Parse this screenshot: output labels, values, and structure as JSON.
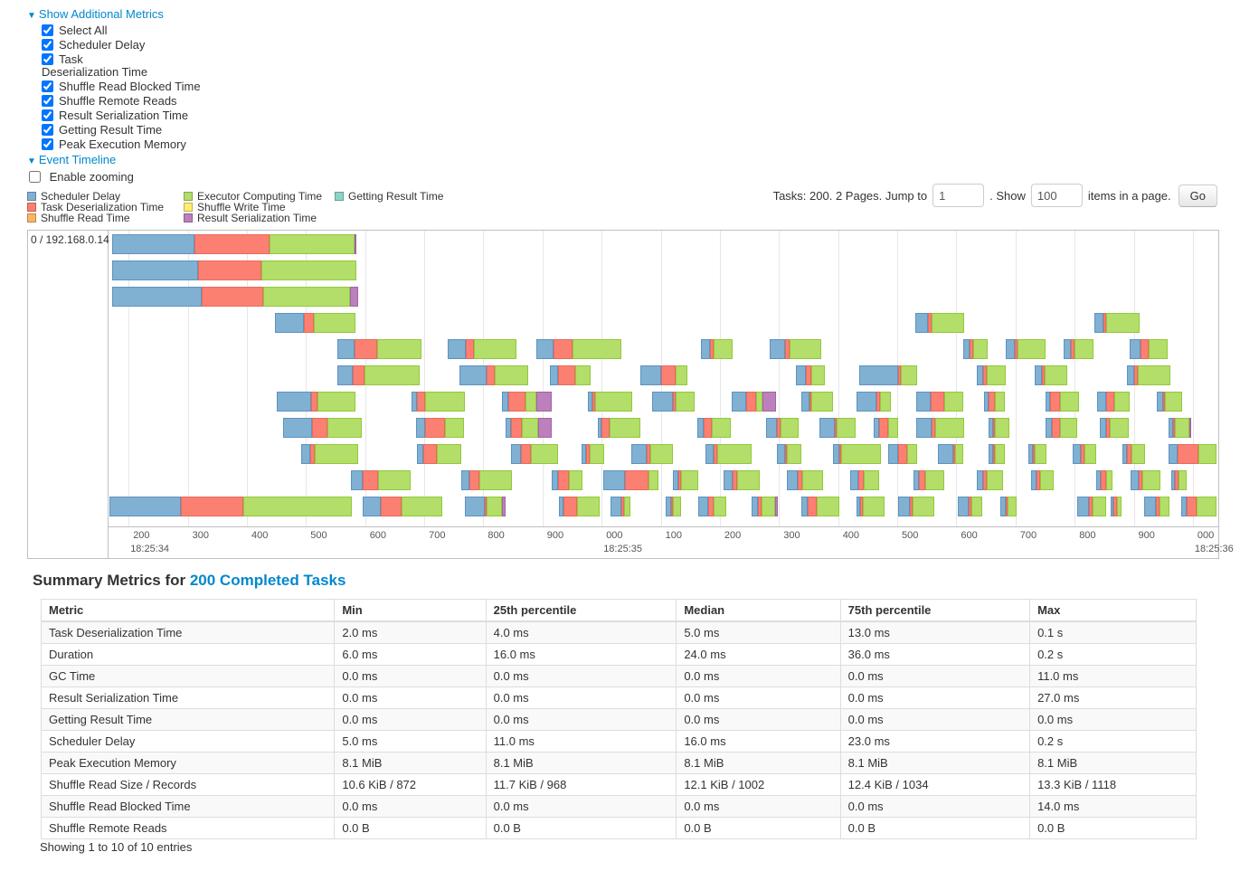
{
  "controls": {
    "show_additional_metrics": "Show Additional Metrics",
    "metrics": [
      {
        "label": "Select All",
        "checked": true
      },
      {
        "label": "Scheduler Delay",
        "checked": true
      },
      {
        "label": "Task Deserialization Time",
        "checked": true,
        "wrap": true
      },
      {
        "label": "Shuffle Read Blocked Time",
        "checked": true
      },
      {
        "label": "Shuffle Remote Reads",
        "checked": true
      },
      {
        "label": "Result Serialization Time",
        "checked": true
      },
      {
        "label": "Getting Result Time",
        "checked": true
      },
      {
        "label": "Peak Execution Memory",
        "checked": true
      }
    ],
    "event_timeline": "Event Timeline",
    "enable_zooming": {
      "label": "Enable zooming",
      "checked": false
    }
  },
  "legend": {
    "items": [
      {
        "label": "Scheduler Delay",
        "color": "#80B1D3"
      },
      {
        "label": "Task Deserialization Time",
        "color": "#FB8072"
      },
      {
        "label": "Shuffle Read Time",
        "color": "#FDB462"
      },
      {
        "label": "Executor Computing Time",
        "color": "#B3DE69"
      },
      {
        "label": "Shuffle Write Time",
        "color": "#FFED6F"
      },
      {
        "label": "Result Serialization Time",
        "color": "#BC80BD"
      },
      {
        "label": "Getting Result Time",
        "color": "#8DD3C7"
      }
    ]
  },
  "pagination": {
    "summary": "Tasks: 200. 2 Pages. Jump to",
    "jump_value": "1",
    "show_label": ". Show",
    "show_value": "100",
    "items_label": "items in a page.",
    "go_label": "Go"
  },
  "chart_data": {
    "type": "gantt",
    "title": "Event Timeline",
    "executor": "0 / 192.168.0.14",
    "domain_ms": [
      166,
      2043
    ],
    "time_base": "18:25:34",
    "segment_keys": {
      "S": "Scheduler Delay",
      "D": "Task Deserialization Time",
      "C": "Executor Computing Time",
      "R": "Result Serialization Time"
    },
    "colors": {
      "S": "#80B1D3",
      "D": "#FB8072",
      "C": "#B3DE69",
      "R": "#BC80BD"
    },
    "border_colors": {
      "S": "#5E92BD",
      "D": "#E96A5C",
      "C": "#93C83D",
      "R": "#A363A4"
    },
    "ticks": [
      {
        "t": 200,
        "label": "200",
        "major": "18:25:34"
      },
      {
        "t": 300,
        "label": "300"
      },
      {
        "t": 400,
        "label": "400"
      },
      {
        "t": 500,
        "label": "500"
      },
      {
        "t": 600,
        "label": "600"
      },
      {
        "t": 700,
        "label": "700"
      },
      {
        "t": 800,
        "label": "800"
      },
      {
        "t": 900,
        "label": "900"
      },
      {
        "t": 1000,
        "label": "000",
        "major": "18:25:35"
      },
      {
        "t": 1100,
        "label": "100"
      },
      {
        "t": 1200,
        "label": "200"
      },
      {
        "t": 1300,
        "label": "300"
      },
      {
        "t": 1400,
        "label": "400"
      },
      {
        "t": 1500,
        "label": "500"
      },
      {
        "t": 1600,
        "label": "600"
      },
      {
        "t": 1700,
        "label": "700"
      },
      {
        "t": 1800,
        "label": "800"
      },
      {
        "t": 1900,
        "label": "900"
      },
      {
        "t": 2000,
        "label": "000",
        "major": "18:25:36"
      }
    ],
    "rows": [
      [
        [
          172,
          139,
          127,
          144,
          3
        ]
      ],
      [
        [
          172,
          145,
          107,
          162,
          0
        ]
      ],
      [
        [
          172,
          151,
          105,
          147,
          14
        ]
      ],
      [
        [
          447,
          50,
          17,
          70,
          0
        ],
        [
          1531,
          21,
          6,
          55,
          0
        ],
        [
          1834,
          15,
          5,
          56,
          0
        ]
      ],
      [
        [
          553,
          29,
          38,
          76,
          0
        ],
        [
          739,
          31,
          14,
          72,
          0
        ],
        [
          890,
          29,
          32,
          82,
          0
        ],
        [
          1168,
          15,
          6,
          32,
          0
        ],
        [
          1284,
          26,
          8,
          53,
          0
        ],
        [
          1611,
          12,
          6,
          24,
          0
        ],
        [
          1684,
          15,
          5,
          47,
          0
        ],
        [
          1782,
          12,
          6,
          32,
          0
        ],
        [
          1893,
          18,
          15,
          32,
          0
        ]
      ],
      [
        [
          553,
          26,
          20,
          93,
          0
        ],
        [
          759,
          46,
          15,
          56,
          0
        ],
        [
          913,
          14,
          29,
          26,
          0
        ],
        [
          1066,
          35,
          24,
          20,
          0
        ],
        [
          1328,
          18,
          8,
          23,
          0
        ],
        [
          1435,
          66,
          6,
          27,
          0
        ],
        [
          1634,
          12,
          6,
          31,
          0
        ],
        [
          1733,
          11,
          5,
          38,
          0
        ],
        [
          1889,
          12,
          6,
          55,
          0
        ]
      ],
      [
        [
          450,
          58,
          12,
          64,
          0
        ],
        [
          678,
          9,
          14,
          67,
          0
        ],
        [
          831,
          12,
          29,
          17,
          27
        ],
        [
          976,
          8,
          5,
          63,
          0
        ],
        [
          1086,
          34,
          6,
          31,
          0
        ],
        [
          1220,
          24,
          17,
          11,
          23
        ],
        [
          1338,
          14,
          3,
          37,
          0
        ],
        [
          1431,
          34,
          6,
          18,
          0
        ],
        [
          1532,
          24,
          24,
          32,
          0
        ],
        [
          1646,
          8,
          11,
          17,
          0
        ],
        [
          1750,
          8,
          17,
          32,
          0
        ],
        [
          1838,
          15,
          14,
          26,
          0
        ],
        [
          1939,
          11,
          3,
          29,
          0
        ]
      ],
      [
        [
          461,
          50,
          26,
          58,
          0
        ],
        [
          686,
          15,
          34,
          32,
          0
        ],
        [
          838,
          9,
          18,
          27,
          23
        ],
        [
          994,
          6,
          14,
          52,
          0
        ],
        [
          1162,
          11,
          14,
          31,
          0
        ],
        [
          1278,
          18,
          6,
          31,
          0
        ],
        [
          1368,
          26,
          3,
          32,
          0
        ],
        [
          1460,
          9,
          15,
          18,
          0
        ],
        [
          1532,
          26,
          6,
          49,
          0
        ],
        [
          1654,
          8,
          3,
          24,
          0
        ],
        [
          1751,
          11,
          14,
          29,
          0
        ],
        [
          1843,
          11,
          6,
          32,
          0
        ],
        [
          1959,
          8,
          3,
          24,
          3
        ]
      ],
      [
        [
          492,
          15,
          8,
          73,
          0
        ],
        [
          687,
          11,
          23,
          41,
          0
        ],
        [
          846,
          17,
          18,
          46,
          0
        ],
        [
          966,
          8,
          6,
          24,
          0
        ],
        [
          1050,
          27,
          6,
          37,
          0
        ],
        [
          1176,
          14,
          6,
          58,
          0
        ],
        [
          1296,
          14,
          3,
          24,
          0
        ],
        [
          1391,
          11,
          3,
          67,
          0
        ],
        [
          1484,
          18,
          14,
          17,
          0
        ],
        [
          1568,
          26,
          3,
          15,
          0
        ],
        [
          1654,
          8,
          3,
          17,
          0
        ],
        [
          1721,
          9,
          3,
          20,
          0
        ],
        [
          1796,
          14,
          6,
          21,
          0
        ],
        [
          1881,
          8,
          8,
          23,
          0
        ],
        [
          1959,
          15,
          35,
          31,
          0
        ]
      ],
      [
        [
          576,
          20,
          26,
          55,
          0
        ],
        [
          762,
          14,
          17,
          56,
          0
        ],
        [
          915,
          12,
          18,
          23,
          0
        ],
        [
          1003,
          37,
          40,
          17,
          0
        ],
        [
          1121,
          9,
          5,
          29,
          0
        ],
        [
          1206,
          15,
          8,
          38,
          0
        ],
        [
          1313,
          18,
          9,
          34,
          0
        ],
        [
          1420,
          15,
          8,
          27,
          0
        ],
        [
          1527,
          9,
          12,
          31,
          0
        ],
        [
          1634,
          12,
          6,
          27,
          0
        ],
        [
          1726,
          9,
          6,
          24,
          0
        ],
        [
          1836,
          8,
          9,
          11,
          0
        ],
        [
          1894,
          15,
          5,
          31,
          0
        ],
        [
          1964,
          6,
          5,
          14,
          0
        ]
      ],
      [
        [
          168,
          121,
          105,
          183,
          0
        ],
        [
          596,
          31,
          34,
          70,
          0
        ],
        [
          768,
          35,
          3,
          26,
          5
        ],
        [
          927,
          8,
          24,
          37,
          0
        ],
        [
          1015,
          18,
          5,
          11,
          0
        ],
        [
          1108,
          9,
          3,
          15,
          0
        ],
        [
          1163,
          18,
          9,
          21,
          0
        ],
        [
          1253,
          12,
          5,
          23,
          5
        ],
        [
          1338,
          11,
          15,
          38,
          0
        ],
        [
          1431,
          6,
          5,
          37,
          0
        ],
        [
          1501,
          20,
          5,
          37,
          0
        ],
        [
          1603,
          18,
          5,
          18,
          0
        ],
        [
          1675,
          9,
          3,
          15,
          0
        ],
        [
          1805,
          20,
          5,
          23,
          0
        ],
        [
          1861,
          5,
          5,
          9,
          0
        ],
        [
          1918,
          20,
          5,
          17,
          0
        ],
        [
          1980,
          9,
          17,
          34,
          0
        ]
      ]
    ]
  },
  "summary": {
    "title_prefix": "Summary Metrics for ",
    "title_link": "200 Completed Tasks",
    "columns": [
      "Metric",
      "Min",
      "25th percentile",
      "Median",
      "75th percentile",
      "Max"
    ],
    "col_widths": [
      "25.4%",
      "13.1%",
      "16.5%",
      "14.2%",
      "16.4%",
      "14.4%"
    ],
    "rows": [
      [
        "Task Deserialization Time",
        "2.0 ms",
        "4.0 ms",
        "5.0 ms",
        "13.0 ms",
        "0.1 s"
      ],
      [
        "Duration",
        "6.0 ms",
        "16.0 ms",
        "24.0 ms",
        "36.0 ms",
        "0.2 s"
      ],
      [
        "GC Time",
        "0.0 ms",
        "0.0 ms",
        "0.0 ms",
        "0.0 ms",
        "11.0 ms"
      ],
      [
        "Result Serialization Time",
        "0.0 ms",
        "0.0 ms",
        "0.0 ms",
        "0.0 ms",
        "27.0 ms"
      ],
      [
        "Getting Result Time",
        "0.0 ms",
        "0.0 ms",
        "0.0 ms",
        "0.0 ms",
        "0.0 ms"
      ],
      [
        "Scheduler Delay",
        "5.0 ms",
        "11.0 ms",
        "16.0 ms",
        "23.0 ms",
        "0.2 s"
      ],
      [
        "Peak Execution Memory",
        "8.1 MiB",
        "8.1 MiB",
        "8.1 MiB",
        "8.1 MiB",
        "8.1 MiB"
      ],
      [
        "Shuffle Read Size / Records",
        "10.6 KiB / 872",
        "11.7 KiB / 968",
        "12.1 KiB / 1002",
        "12.4 KiB / 1034",
        "13.3 KiB / 1118"
      ],
      [
        "Shuffle Read Blocked Time",
        "0.0 ms",
        "0.0 ms",
        "0.0 ms",
        "0.0 ms",
        "14.0 ms"
      ],
      [
        "Shuffle Remote Reads",
        "0.0 B",
        "0.0 B",
        "0.0 B",
        "0.0 B",
        "0.0 B"
      ]
    ],
    "footer": "Showing 1 to 10 of 10 entries"
  }
}
